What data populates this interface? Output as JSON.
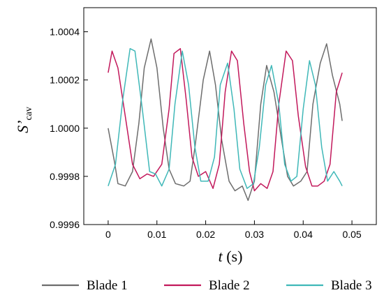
{
  "chart_data": {
    "type": "line",
    "xlabel": {
      "var": "t",
      "unit": "(s)"
    },
    "ylabel": {
      "main": "S’",
      "sub": "cav"
    },
    "xlim": [
      -0.005,
      0.055
    ],
    "ylim": [
      0.9996,
      1.0005
    ],
    "xticks": [
      0,
      0.01,
      0.02,
      0.03,
      0.04,
      0.05
    ],
    "xtick_labels": [
      "0",
      "0.01",
      "0.02",
      "0.03",
      "0.04",
      "0.05"
    ],
    "yticks": [
      0.9996,
      0.9998,
      1.0,
      1.0002,
      1.0004
    ],
    "ytick_labels": [
      "0.9996",
      "0.9998",
      "1.0000",
      "1.0002",
      "1.0004"
    ],
    "legend_placement": "bottom",
    "series": [
      {
        "name": "Blade 1",
        "color": "#6d6d6d",
        "x": [
          0,
          0.0013,
          0.002,
          0.0035,
          0.005,
          0.0063,
          0.0074,
          0.0088,
          0.01,
          0.0113,
          0.0125,
          0.0138,
          0.0155,
          0.0168,
          0.0178,
          0.0195,
          0.0208,
          0.022,
          0.0233,
          0.0248,
          0.026,
          0.0275,
          0.0287,
          0.03,
          0.0313,
          0.0325,
          0.034,
          0.0355,
          0.0368,
          0.038,
          0.0395,
          0.0408,
          0.042,
          0.0435,
          0.0448,
          0.046,
          0.0475,
          0.048
        ],
        "y": [
          1.0,
          0.99986,
          0.99977,
          0.99976,
          0.99982,
          1.00002,
          1.00025,
          1.00037,
          1.00025,
          1.0,
          0.99983,
          0.99977,
          0.99976,
          0.99978,
          0.99992,
          1.0002,
          1.00032,
          1.00018,
          0.99995,
          0.99978,
          0.99974,
          0.99976,
          0.9997,
          0.99978,
          1.0001,
          1.00026,
          1.00015,
          0.99996,
          0.9998,
          0.99976,
          0.99978,
          0.99982,
          1.0001,
          1.00027,
          1.00035,
          1.00022,
          1.0001,
          1.00003
        ]
      },
      {
        "name": "Blade 2",
        "color": "#c2185b",
        "x": [
          0,
          0.0008,
          0.002,
          0.0035,
          0.005,
          0.0065,
          0.008,
          0.0093,
          0.011,
          0.0125,
          0.0135,
          0.0148,
          0.016,
          0.0172,
          0.0185,
          0.02,
          0.0215,
          0.0228,
          0.024,
          0.0253,
          0.0265,
          0.0278,
          0.029,
          0.03,
          0.0313,
          0.0326,
          0.0338,
          0.035,
          0.0365,
          0.0378,
          0.039,
          0.0405,
          0.0418,
          0.043,
          0.0443,
          0.0455,
          0.0468,
          0.048
        ],
        "y": [
          1.00023,
          1.00032,
          1.00025,
          1.00005,
          0.99985,
          0.99979,
          0.99981,
          0.9998,
          0.99985,
          1.00008,
          1.00031,
          1.00033,
          1.00012,
          0.99988,
          0.9998,
          0.99982,
          0.99975,
          0.99985,
          1.00015,
          1.00032,
          1.00028,
          1.00002,
          0.99982,
          0.99974,
          0.99977,
          0.99975,
          0.99982,
          1.0001,
          1.00032,
          1.00028,
          1.00005,
          0.99984,
          0.99976,
          0.99976,
          0.99978,
          0.99985,
          1.00015,
          1.00023
        ]
      },
      {
        "name": "Blade 3",
        "color": "#3fb8b8",
        "x": [
          0,
          0.0015,
          0.003,
          0.0045,
          0.0055,
          0.007,
          0.0085,
          0.0097,
          0.011,
          0.0125,
          0.0137,
          0.0152,
          0.0165,
          0.0178,
          0.019,
          0.0205,
          0.0218,
          0.023,
          0.0245,
          0.0258,
          0.027,
          0.0285,
          0.0298,
          0.031,
          0.0323,
          0.0335,
          0.035,
          0.0362,
          0.0375,
          0.0387,
          0.04,
          0.0413,
          0.0425,
          0.0438,
          0.045,
          0.0463,
          0.0475,
          0.048
        ],
        "y": [
          0.99976,
          0.99985,
          1.00012,
          1.00033,
          1.00032,
          1.00008,
          0.99982,
          0.99981,
          0.99976,
          0.99983,
          1.0001,
          1.00032,
          1.00018,
          0.99992,
          0.99978,
          0.99978,
          0.99988,
          1.00018,
          1.00027,
          1.00008,
          0.99983,
          0.99975,
          0.99977,
          0.99992,
          1.00018,
          1.00026,
          1.0001,
          0.99985,
          0.99978,
          0.9998,
          1.00008,
          1.00028,
          1.00018,
          0.99992,
          0.99978,
          0.99982,
          0.99978,
          0.99976
        ]
      }
    ]
  }
}
